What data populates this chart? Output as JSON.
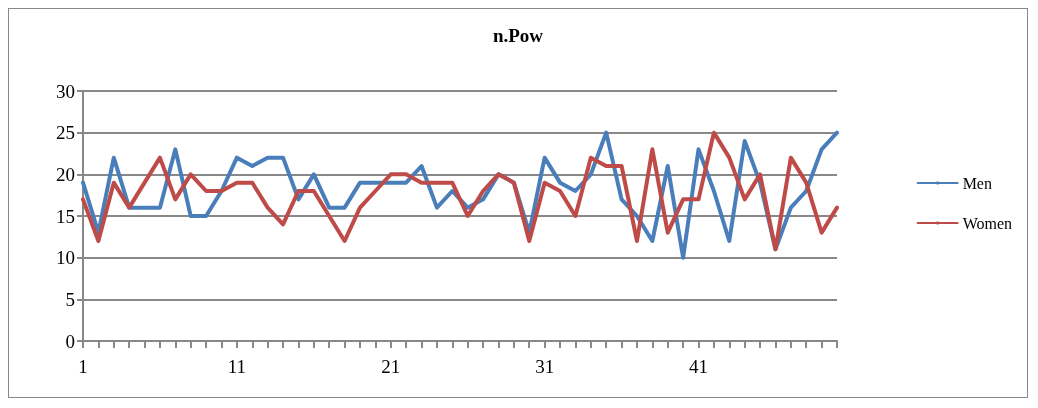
{
  "chart_data": {
    "type": "line",
    "title": "n.Pow",
    "categories": [
      "1",
      null,
      null,
      null,
      null,
      null,
      null,
      null,
      null,
      null,
      "11",
      null,
      null,
      null,
      null,
      null,
      null,
      null,
      null,
      null,
      "21",
      null,
      null,
      null,
      null,
      null,
      null,
      null,
      null,
      null,
      "31",
      null,
      null,
      null,
      null,
      null,
      null,
      null,
      null,
      null,
      "41",
      null,
      null,
      null,
      null,
      null,
      null,
      null,
      null,
      null
    ],
    "series": [
      {
        "name": "Men",
        "color": "#4a7ebb",
        "values": [
          19,
          13,
          22,
          16,
          16,
          16,
          23,
          15,
          15,
          18,
          22,
          21,
          22,
          22,
          17,
          20,
          16,
          16,
          19,
          19,
          19,
          19,
          21,
          16,
          18,
          16,
          17,
          20,
          19,
          13,
          22,
          19,
          18,
          20,
          25,
          17,
          15,
          12,
          21,
          10,
          23,
          18,
          12,
          24,
          19,
          11,
          16,
          18,
          23,
          25
        ]
      },
      {
        "name": "Women",
        "color": "#be4b48",
        "values": [
          17,
          12,
          19,
          16,
          19,
          22,
          17,
          20,
          18,
          18,
          19,
          19,
          16,
          14,
          18,
          18,
          15,
          12,
          16,
          18,
          20,
          20,
          19,
          19,
          19,
          15,
          18,
          20,
          19,
          12,
          19,
          18,
          15,
          22,
          21,
          21,
          12,
          23,
          13,
          17,
          17,
          25,
          22,
          17,
          20,
          11,
          22,
          19,
          13,
          16
        ]
      }
    ],
    "ylim": [
      0,
      30
    ],
    "yticks": [
      0,
      5,
      10,
      15,
      20,
      25,
      30
    ],
    "grid": "y",
    "legend": "right",
    "marker": "none",
    "line_style": "solid"
  }
}
